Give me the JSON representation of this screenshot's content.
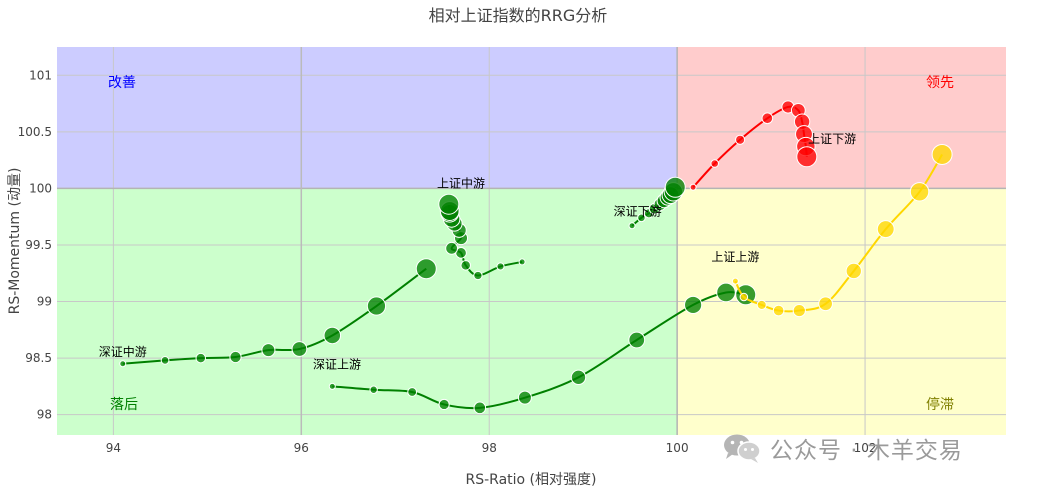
{
  "chart_data": {
    "type": "scatter",
    "title": "相对上证指数的RRG分析",
    "xlabel": "RS-Ratio (相对强度)",
    "ylabel": "RS-Momentum (动量)",
    "xlim": [
      93.4,
      103.5
    ],
    "ylim": [
      97.82,
      101.25
    ],
    "xticks": [
      94,
      96,
      98,
      100,
      102
    ],
    "xtick_labels": [
      "94",
      "96",
      "98",
      "100",
      "102"
    ],
    "yticks": [
      98,
      98.5,
      99,
      99.5,
      100,
      100.5,
      101
    ],
    "ytick_labels": [
      "98",
      "98.5",
      "99",
      "99.5",
      "100",
      "100.5",
      "101"
    ],
    "grid": true,
    "center": [
      100,
      100
    ],
    "quadrants": [
      {
        "name": "improving",
        "label": "改善",
        "x": [
          93.4,
          100
        ],
        "y": [
          100,
          101.25
        ],
        "fill": "#ccccff",
        "label_color": "#0000ff"
      },
      {
        "name": "leading",
        "label": "领先",
        "x": [
          100,
          103.5
        ],
        "y": [
          100,
          101.25
        ],
        "fill": "#ffcccc",
        "label_color": "#ff0000"
      },
      {
        "name": "lagging",
        "label": "落后",
        "x": [
          93.4,
          100
        ],
        "y": [
          97.82,
          100
        ],
        "fill": "#ccffcc",
        "label_color": "#008000"
      },
      {
        "name": "weakening",
        "label": "停滞",
        "x": [
          100,
          103.5
        ],
        "y": [
          97.82,
          100
        ],
        "fill": "#ffffcc",
        "label_color": "#808000"
      }
    ],
    "series": [
      {
        "name": "深证下游",
        "label_at": [
          99.58,
          99.76
        ],
        "x": [
          99.52,
          99.62,
          99.7,
          99.76,
          99.82,
          99.86,
          99.9,
          99.93,
          99.96,
          99.98
        ],
        "y": [
          99.67,
          99.74,
          99.78,
          99.82,
          99.86,
          99.89,
          99.92,
          99.94,
          99.97,
          100.01
        ],
        "colors": [
          "#008000",
          "#008000",
          "#008000",
          "#008000",
          "#008000",
          "#008000",
          "#008000",
          "#008000",
          "#008000",
          "#008000"
        ]
      },
      {
        "name": "上证中游",
        "label_at": [
          97.7,
          100.01
        ],
        "x": [
          98.35,
          98.12,
          97.88,
          97.75,
          97.7,
          97.6,
          97.7,
          97.68,
          97.63,
          97.6,
          97.58,
          97.58,
          97.57
        ],
        "y": [
          99.35,
          99.31,
          99.23,
          99.32,
          99.43,
          99.47,
          99.56,
          99.63,
          99.69,
          99.73,
          99.78,
          99.8,
          99.86
        ],
        "colors": [
          "#008000",
          "#008000",
          "#008000",
          "#008000",
          "#008000",
          "#008000",
          "#008000",
          "#008000",
          "#008000",
          "#008000",
          "#008000",
          "#008000",
          "#008000"
        ]
      },
      {
        "name": "深证中游",
        "label_at": [
          94.1,
          98.52
        ],
        "x": [
          94.1,
          94.55,
          94.93,
          95.3,
          95.65,
          95.98,
          96.33,
          96.8,
          97.33
        ],
        "y": [
          98.45,
          98.48,
          98.5,
          98.51,
          98.57,
          98.58,
          98.7,
          98.96,
          99.29
        ],
        "colors": [
          "#008000",
          "#008000",
          "#008000",
          "#008000",
          "#008000",
          "#008000",
          "#008000",
          "#008000",
          "#008000"
        ]
      },
      {
        "name": "深证上游",
        "label_at": [
          96.38,
          98.41
        ],
        "x": [
          96.33,
          96.77,
          97.18,
          97.52,
          97.9,
          98.38,
          98.95,
          99.57,
          100.17,
          100.52,
          100.73
        ],
        "y": [
          98.25,
          98.22,
          98.2,
          98.09,
          98.06,
          98.15,
          98.33,
          98.66,
          98.97,
          99.08,
          99.06
        ],
        "colors": [
          "#008000",
          "#008000",
          "#008000",
          "#008000",
          "#008000",
          "#008000",
          "#008000",
          "#008000",
          "#008000",
          "#008000",
          "#008000"
        ]
      },
      {
        "name": "上证上游",
        "label_at": [
          100.62,
          99.36
        ],
        "x": [
          100.62,
          100.71,
          100.9,
          101.08,
          101.3,
          101.58,
          101.88,
          102.22,
          102.58,
          102.82
        ],
        "y": [
          99.18,
          99.04,
          98.97,
          98.92,
          98.92,
          98.98,
          99.27,
          99.64,
          99.97,
          100.3
        ],
        "colors": [
          "#ffd700",
          "#ffd700",
          "#ffd700",
          "#ffd700",
          "#ffd700",
          "#ffd700",
          "#ffd700",
          "#ffd700",
          "#ffd700",
          "#ffd700"
        ]
      },
      {
        "name": "上证下游",
        "label_at": [
          101.65,
          100.4
        ],
        "x": [
          100.17,
          100.4,
          100.67,
          100.96,
          101.18,
          101.29,
          101.33,
          101.35,
          101.37,
          101.38
        ],
        "y": [
          100.01,
          100.22,
          100.43,
          100.62,
          100.72,
          100.69,
          100.59,
          100.48,
          100.37,
          100.28
        ],
        "colors": [
          "#ff0000",
          "#ff0000",
          "#ff0000",
          "#ff0000",
          "#ff0000",
          "#ff0000",
          "#ff0000",
          "#ff0000",
          "#ff0000",
          "#ff0000"
        ]
      }
    ]
  },
  "watermark": {
    "icon": "wechat-icon",
    "text": "公众号 · 木羊交易"
  }
}
